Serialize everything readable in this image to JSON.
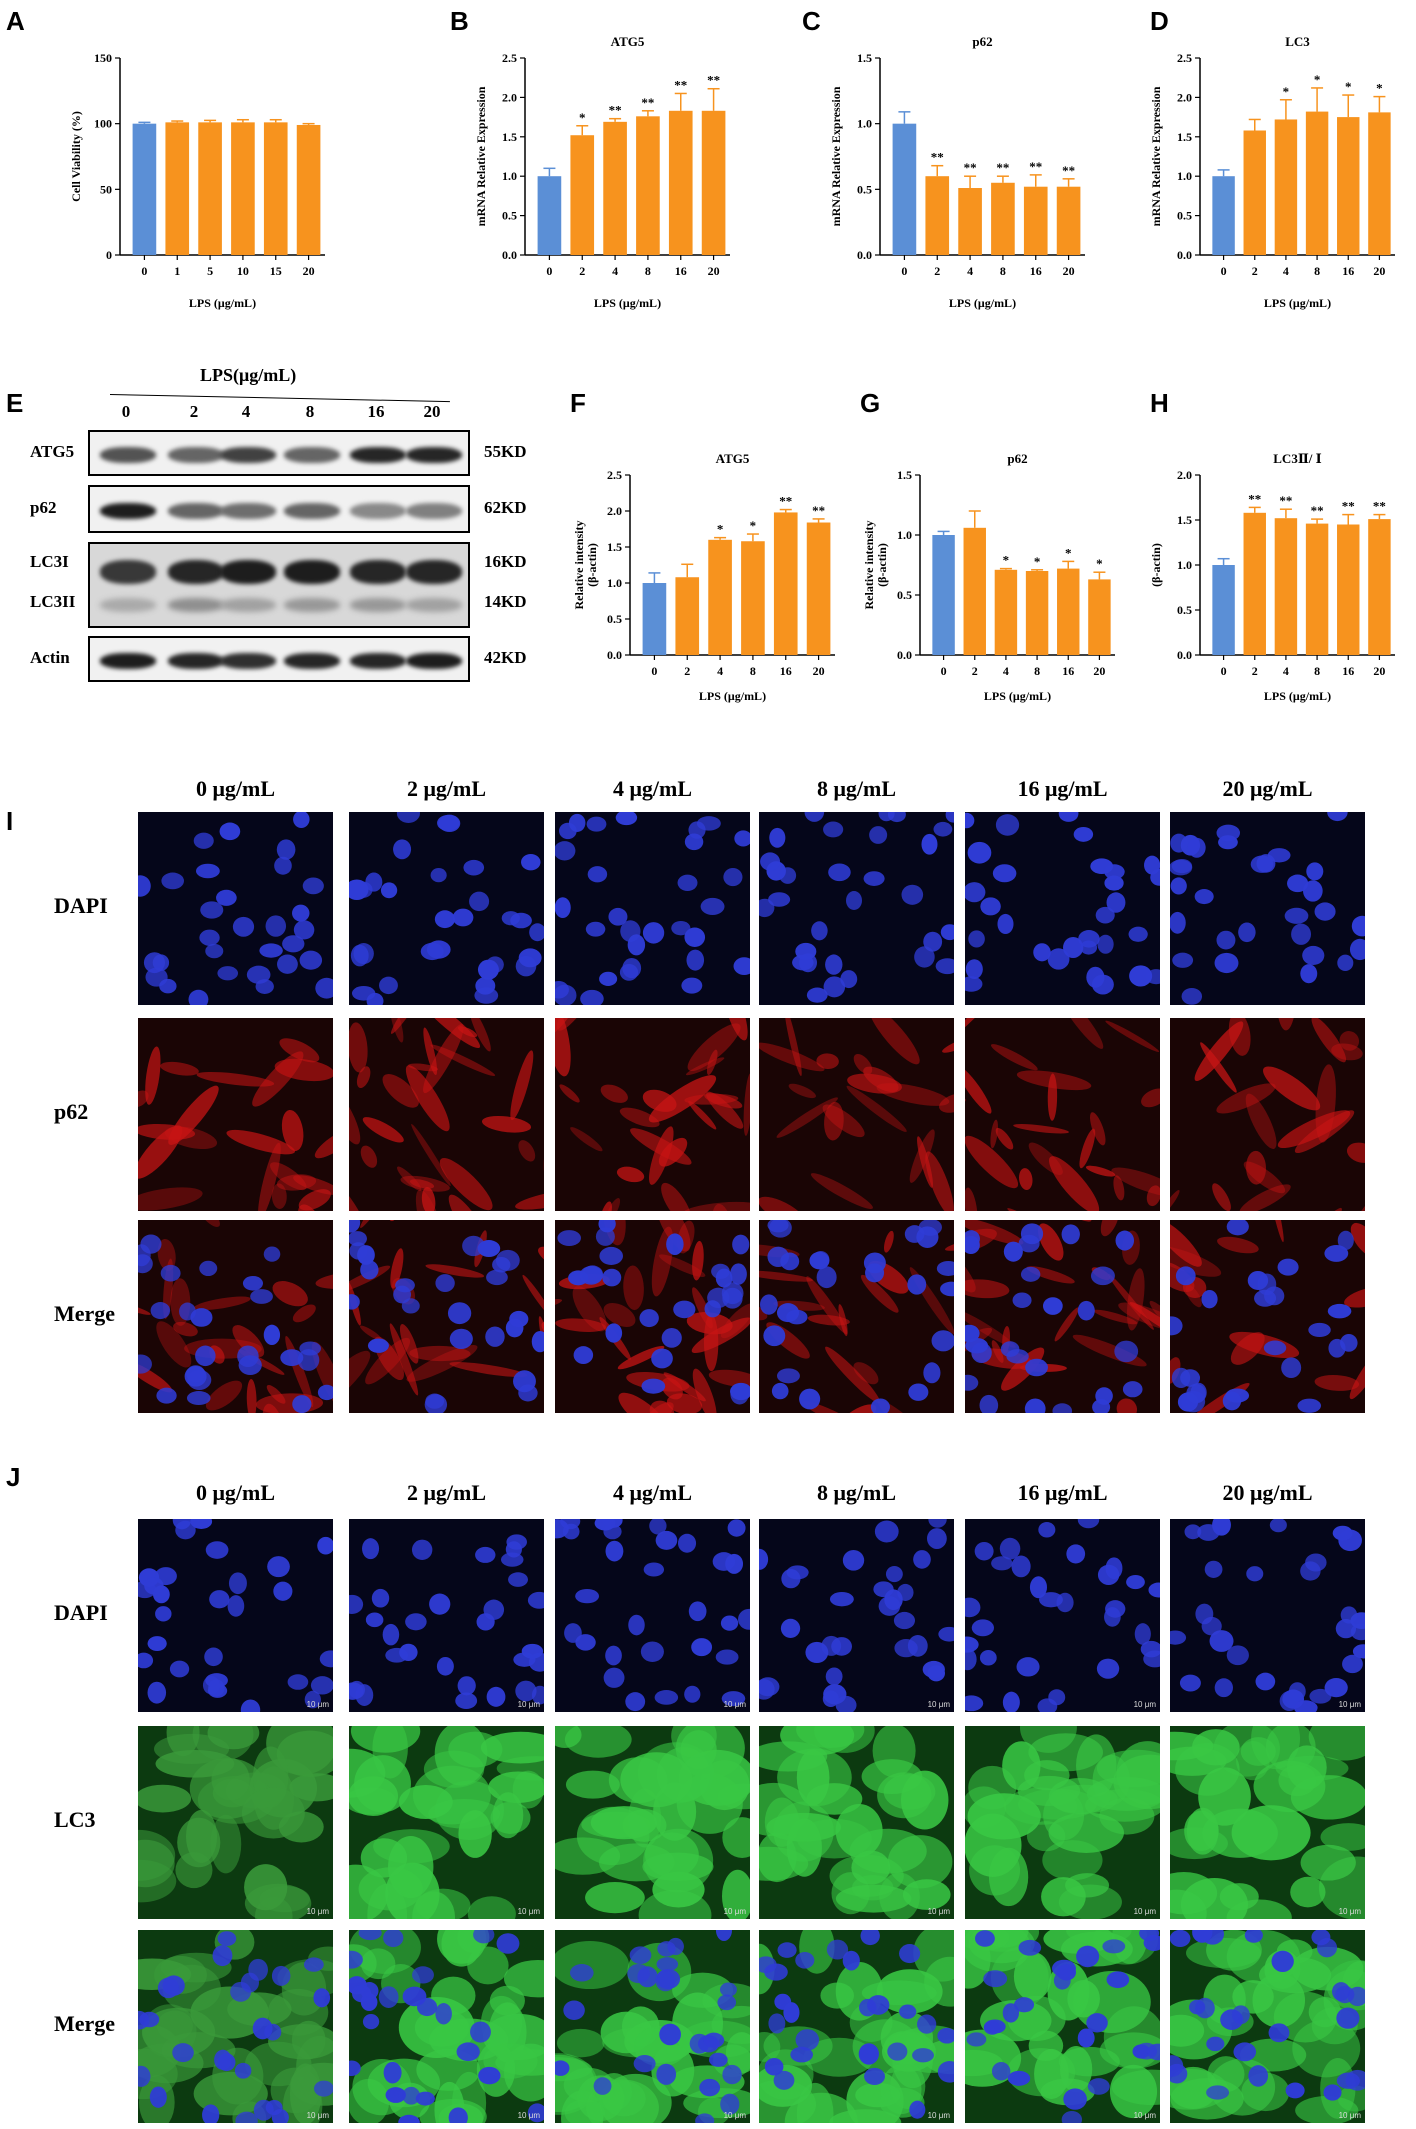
{
  "panel_labels": {
    "A": "A",
    "B": "B",
    "C": "C",
    "D": "D",
    "E": "E",
    "F": "F",
    "G": "G",
    "H": "H",
    "I": "I",
    "J": "J"
  },
  "colors": {
    "control": "#5b8fd6",
    "treated": "#f7931e",
    "dapi": "#1a2dd1",
    "p62": "#d41818",
    "lc3": "#2fbf3a"
  },
  "chart_data": [
    {
      "id": "A",
      "type": "bar",
      "title": "",
      "categories": [
        "0",
        "1",
        "5",
        "10",
        "15",
        "20"
      ],
      "values": [
        100,
        101,
        101,
        101,
        101,
        99
      ],
      "errors": [
        1,
        1,
        1.5,
        2,
        2,
        1
      ],
      "stars": [
        "",
        "",
        "",
        "",
        "",
        ""
      ],
      "ylabel": "Cell Viability (%)",
      "xlabel": "LPS (μg/mL)",
      "ylim": [
        0,
        150
      ],
      "yticks": [
        "0",
        "50",
        "100",
        "150"
      ]
    },
    {
      "id": "B",
      "type": "bar",
      "title": "ATG5",
      "categories": [
        "0",
        "2",
        "4",
        "8",
        "16",
        "20"
      ],
      "values": [
        1.0,
        1.52,
        1.69,
        1.76,
        1.83,
        1.83
      ],
      "errors": [
        0.1,
        0.12,
        0.04,
        0.07,
        0.22,
        0.28
      ],
      "stars": [
        "",
        "*",
        "**",
        "**",
        "**",
        "**"
      ],
      "ylabel": "mRNA Relative Expression",
      "xlabel": "LPS (μg/mL)",
      "ylim": [
        0,
        2.5
      ],
      "yticks": [
        "0.0",
        "0.5",
        "1.0",
        "1.5",
        "2.0",
        "2.5"
      ]
    },
    {
      "id": "C",
      "type": "bar",
      "title": "p62",
      "categories": [
        "0",
        "2",
        "4",
        "8",
        "16",
        "20"
      ],
      "values": [
        1.0,
        0.6,
        0.51,
        0.55,
        0.52,
        0.52
      ],
      "errors": [
        0.09,
        0.08,
        0.09,
        0.05,
        0.09,
        0.06
      ],
      "stars": [
        "",
        "**",
        "**",
        "**",
        "**",
        "**"
      ],
      "ylabel": "mRNA Relative Expression",
      "xlabel": "LPS (μg/mL)",
      "ylim": [
        0,
        1.5
      ],
      "yticks": [
        "0.0",
        "0.5",
        "1.0",
        "1.5"
      ]
    },
    {
      "id": "D",
      "type": "bar",
      "title": "LC3",
      "categories": [
        "0",
        "2",
        "4",
        "8",
        "16",
        "20"
      ],
      "values": [
        1.0,
        1.58,
        1.72,
        1.82,
        1.75,
        1.81
      ],
      "errors": [
        0.08,
        0.14,
        0.25,
        0.3,
        0.28,
        0.2
      ],
      "stars": [
        "",
        "",
        "*",
        "*",
        "*",
        "*"
      ],
      "ylabel": "mRNA Relative Expression",
      "xlabel": "LPS (μg/mL)",
      "ylim": [
        0,
        2.5
      ],
      "yticks": [
        "0.0",
        "0.5",
        "1.0",
        "1.5",
        "2.0",
        "2.5"
      ]
    },
    {
      "id": "F",
      "type": "bar",
      "title": "ATG5",
      "categories": [
        "0",
        "2",
        "4",
        "8",
        "16",
        "20"
      ],
      "values": [
        1.0,
        1.08,
        1.6,
        1.58,
        1.98,
        1.84
      ],
      "errors": [
        0.14,
        0.18,
        0.03,
        0.1,
        0.04,
        0.05
      ],
      "stars": [
        "",
        "",
        "*",
        "*",
        "**",
        "**"
      ],
      "ylabel": "Relative intensity\n(β-actin)",
      "xlabel": "LPS (μg/mL)",
      "ylim": [
        0,
        2.5
      ],
      "yticks": [
        "0.0",
        "0.5",
        "1.0",
        "1.5",
        "2.0",
        "2.5"
      ]
    },
    {
      "id": "G",
      "type": "bar",
      "title": "p62",
      "categories": [
        "0",
        "2",
        "4",
        "8",
        "16",
        "20"
      ],
      "values": [
        1.0,
        1.06,
        0.71,
        0.7,
        0.72,
        0.63
      ],
      "errors": [
        0.03,
        0.14,
        0.01,
        0.01,
        0.06,
        0.06
      ],
      "stars": [
        "",
        "",
        "*",
        "*",
        "*",
        "*"
      ],
      "ylabel": "Relative intensity\n(β-actin)",
      "xlabel": "LPS (μg/mL)",
      "ylim": [
        0,
        1.5
      ],
      "yticks": [
        "0.0",
        "0.5",
        "1.0",
        "1.5"
      ]
    },
    {
      "id": "H",
      "type": "bar",
      "title": "LC3Ⅱ/ Ⅰ",
      "categories": [
        "0",
        "2",
        "4",
        "8",
        "16",
        "20"
      ],
      "values": [
        1.0,
        1.58,
        1.52,
        1.46,
        1.45,
        1.51
      ],
      "errors": [
        0.07,
        0.06,
        0.1,
        0.05,
        0.11,
        0.05
      ],
      "stars": [
        "",
        "**",
        "**",
        "**",
        "**",
        "**"
      ],
      "ylabel": "(β-actin)",
      "xlabel": "LPS (μg/mL)",
      "ylim": [
        0,
        2.0
      ],
      "yticks": [
        "0.0",
        "0.5",
        "1.0",
        "1.5",
        "2.0"
      ]
    }
  ],
  "blot": {
    "header": "LPS(μg/mL)",
    "lanes": [
      "0",
      "2",
      "4",
      "8",
      "16",
      "20"
    ],
    "rows": [
      {
        "name": "ATG5",
        "kd": "55KD",
        "intensity": [
          0.65,
          0.55,
          0.75,
          0.55,
          0.9,
          0.9
        ]
      },
      {
        "name": "p62",
        "kd": "62KD",
        "intensity": [
          0.95,
          0.55,
          0.5,
          0.55,
          0.35,
          0.4
        ]
      },
      {
        "name": "LC3I",
        "name2": "LC3II",
        "kd": "16KD",
        "kd2": "14KD",
        "intensity": [
          0.8,
          0.9,
          0.95,
          0.95,
          0.9,
          0.9
        ],
        "intensity2": [
          0.25,
          0.4,
          0.3,
          0.35,
          0.35,
          0.3
        ]
      },
      {
        "name": "Actin",
        "kd": "42KD",
        "intensity": [
          0.95,
          0.9,
          0.85,
          0.9,
          0.9,
          0.95
        ]
      }
    ]
  },
  "panel_I": {
    "columns": [
      "0 μg/mL",
      "2 μg/mL",
      "4 μg/mL",
      "8 μg/mL",
      "16 μg/mL",
      "20 μg/mL"
    ],
    "rows": [
      "DAPI",
      "p62",
      "Merge"
    ]
  },
  "panel_J": {
    "columns": [
      "0 μg/mL",
      "2 μg/mL",
      "4 μg/mL",
      "8 μg/mL",
      "16 μg/mL",
      "20 μg/mL"
    ],
    "rows": [
      "DAPI",
      "LC3",
      "Merge"
    ],
    "scale_bar": "10 μm"
  }
}
